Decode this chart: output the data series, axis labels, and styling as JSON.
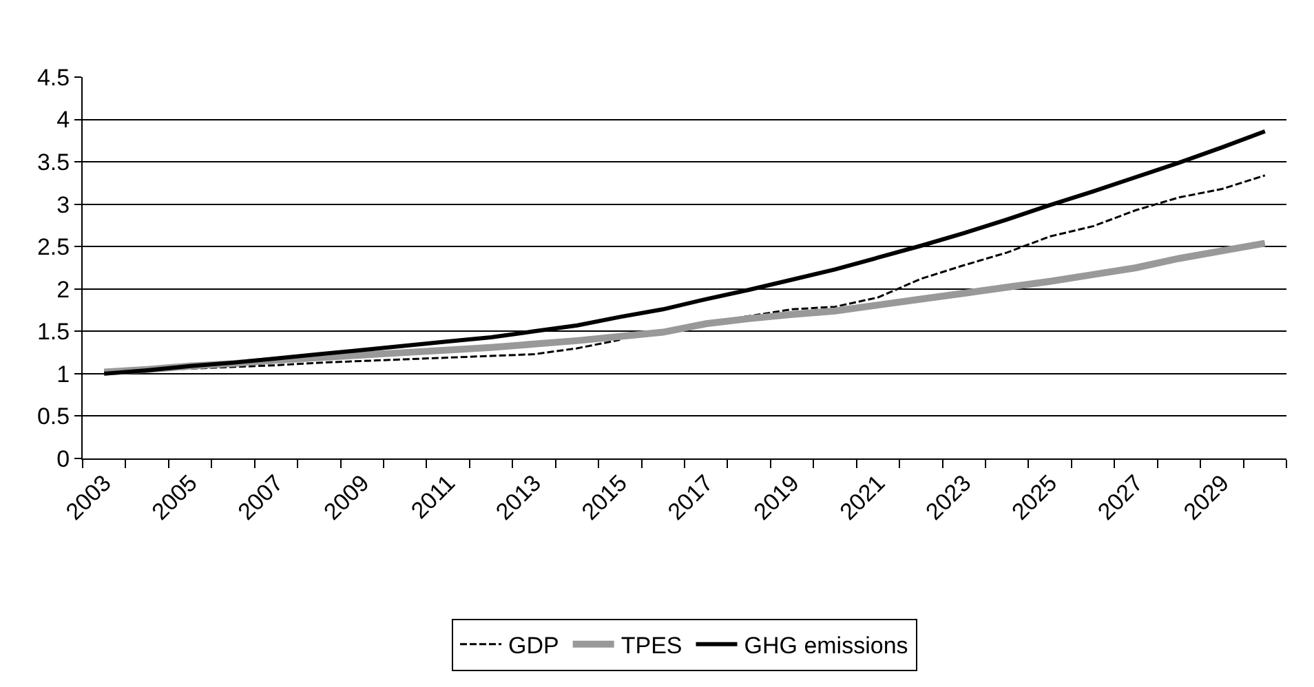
{
  "chart_data": {
    "type": "line",
    "categories": [
      "2003",
      null,
      "2005",
      null,
      "2007",
      null,
      "2009",
      null,
      "2011",
      null,
      "2013",
      null,
      "2015",
      null,
      "2017",
      null,
      "2019",
      null,
      "2021",
      null,
      "2023",
      null,
      "2025",
      null,
      "2027",
      null,
      "2029",
      null
    ],
    "series": [
      {
        "name": "GDP",
        "color": "#000000",
        "line_style": "dashed",
        "values": [
          1.02,
          1.04,
          1.06,
          1.08,
          1.1,
          1.13,
          1.15,
          1.17,
          1.19,
          1.21,
          1.23,
          1.3,
          1.4,
          null,
          1.6,
          1.68,
          1.76,
          1.79,
          1.9,
          2.12,
          2.28,
          2.43,
          2.62,
          2.74,
          2.93,
          3.08,
          3.18,
          3.34
        ]
      },
      {
        "name": "TPES",
        "color": "#999999",
        "line_style": "solid",
        "values": [
          1.02,
          1.05,
          1.09,
          1.12,
          1.16,
          1.19,
          1.22,
          1.25,
          1.28,
          1.31,
          1.35,
          1.39,
          1.44,
          1.49,
          1.59,
          1.65,
          1.7,
          1.74,
          1.81,
          1.88,
          1.95,
          2.02,
          2.09,
          2.17,
          2.25,
          2.36,
          2.45,
          2.54
        ]
      },
      {
        "name": "GHG emissions",
        "color": "#000000",
        "line_style": "solid",
        "values": [
          1.0,
          1.04,
          1.09,
          1.13,
          1.18,
          1.23,
          1.28,
          1.33,
          1.38,
          1.43,
          1.5,
          1.57,
          1.67,
          1.76,
          1.88,
          1.99,
          2.11,
          2.23,
          2.37,
          2.51,
          2.66,
          2.82,
          2.99,
          3.15,
          3.32,
          3.49,
          3.67,
          3.86
        ]
      }
    ],
    "ylim": [
      0,
      4.5
    ],
    "yticks": [
      0,
      0.5,
      1,
      1.5,
      2,
      2.5,
      3,
      3.5,
      4,
      4.5
    ],
    "grid": "y",
    "legend": "bottom",
    "marker": "none"
  }
}
